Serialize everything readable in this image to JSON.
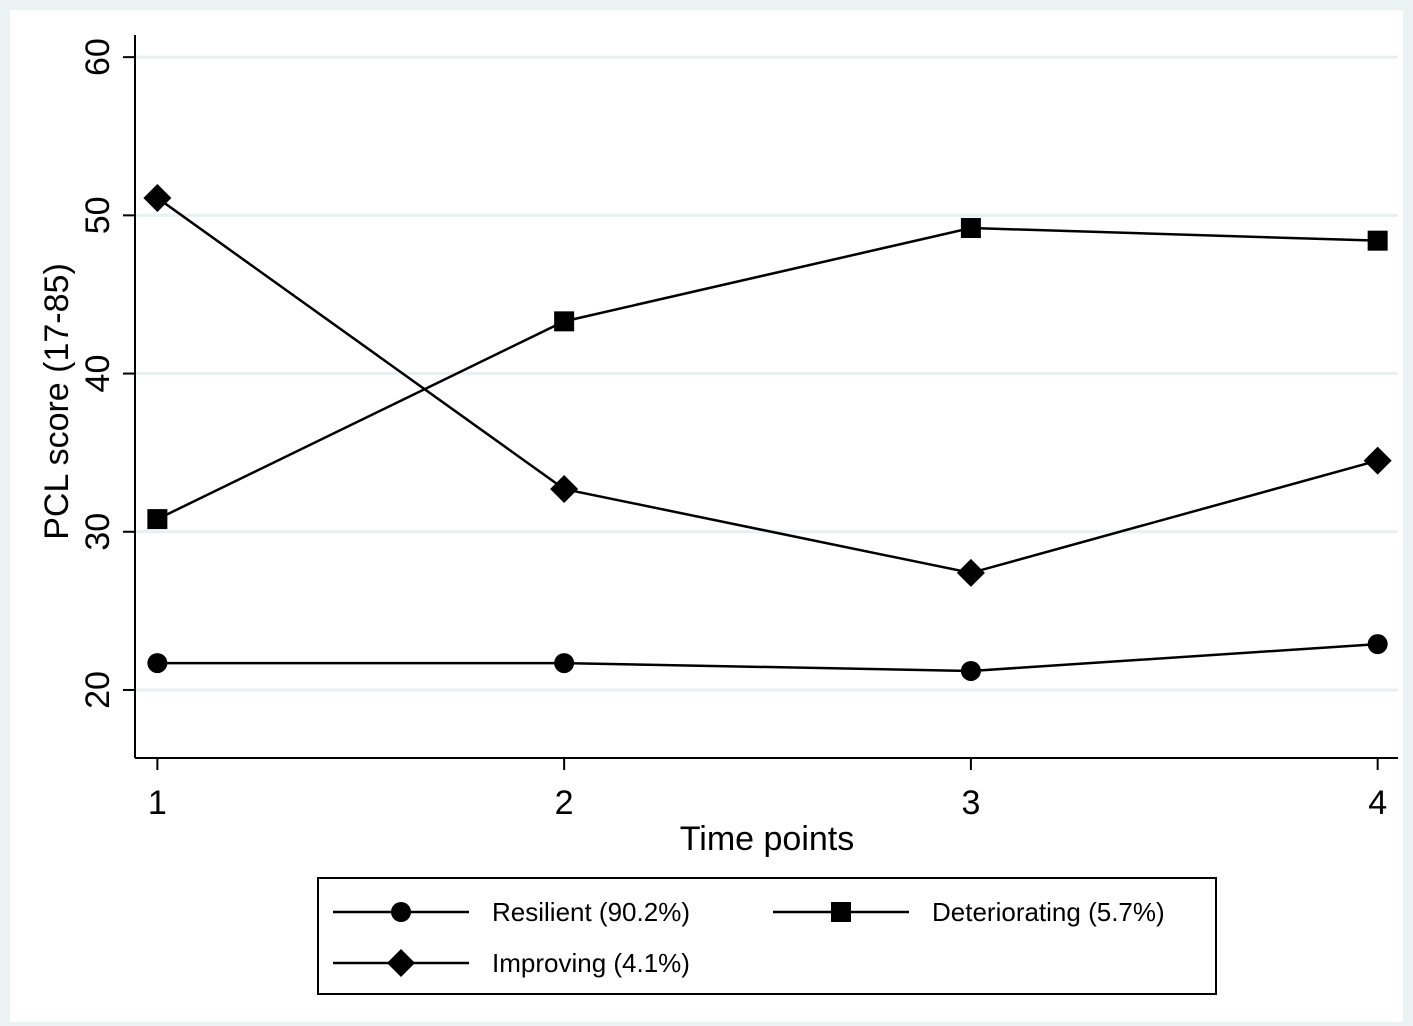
{
  "chart_data": {
    "type": "line",
    "title": "",
    "xlabel": "Time points",
    "ylabel": "PCL score (17-85)",
    "x": [
      1,
      2,
      3,
      4
    ],
    "x_ticks": [
      "1",
      "2",
      "3",
      "4"
    ],
    "y_ticks": [
      "20",
      "30",
      "40",
      "50",
      "60"
    ],
    "ylim": [
      15.7,
      61.4
    ],
    "xlim": [
      0.945,
      4.05
    ],
    "grid": true,
    "legend_position": "bottom",
    "series": [
      {
        "name": "Resilient (90.2%)",
        "marker": "circle",
        "values": [
          21.7,
          21.7,
          21.2,
          22.9
        ]
      },
      {
        "name": "Deteriorating (5.7%)",
        "marker": "square",
        "values": [
          30.8,
          43.3,
          49.2,
          48.4
        ]
      },
      {
        "name": "Improving (4.1%)",
        "marker": "diamond",
        "values": [
          51.1,
          32.7,
          27.4,
          34.5
        ]
      }
    ],
    "colors": {
      "plot_background": "#ffffff",
      "outer_background": "#eaf2f3",
      "grid": "#e8f0f1",
      "line": "#000000"
    }
  }
}
